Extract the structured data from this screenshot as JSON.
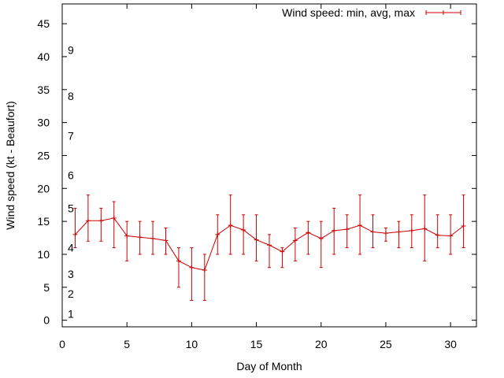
{
  "chart_data": {
    "type": "line",
    "title": "",
    "xlabel": "Day of Month",
    "ylabel": "Wind speed (kt - Beaufort)",
    "xlim": [
      0,
      32
    ],
    "ylim": [
      -1,
      48
    ],
    "xticks": [
      0,
      5,
      10,
      15,
      20,
      25,
      30
    ],
    "yticks": [
      0,
      5,
      10,
      15,
      20,
      25,
      30,
      35,
      40,
      45
    ],
    "grid": false,
    "legend": {
      "position": "top-right"
    },
    "beaufort_labels": [
      {
        "label": "1",
        "y": 1
      },
      {
        "label": "2",
        "y": 4
      },
      {
        "label": "3",
        "y": 7
      },
      {
        "label": "4",
        "y": 11
      },
      {
        "label": "5",
        "y": 17
      },
      {
        "label": "6",
        "y": 22
      },
      {
        "label": "7",
        "y": 28
      },
      {
        "label": "8",
        "y": 34
      },
      {
        "label": "9",
        "y": 41
      }
    ],
    "series": [
      {
        "name": "Wind speed: min, avg, max",
        "color": "#cc0000",
        "x": [
          1,
          2,
          3,
          4,
          5,
          6,
          7,
          8,
          9,
          10,
          11,
          12,
          13,
          14,
          15,
          16,
          17,
          18,
          19,
          20,
          21,
          22,
          23,
          24,
          25,
          26,
          27,
          28,
          29,
          30,
          31
        ],
        "avg": [
          13,
          15.1,
          15.1,
          15.5,
          12.8,
          12.6,
          12.4,
          12.1,
          9,
          8,
          7.6,
          13,
          14.4,
          13.7,
          12.2,
          11.4,
          10.4,
          12.1,
          13.3,
          12.4,
          13.6,
          13.8,
          14.4,
          13.4,
          13.2,
          13.4,
          13.6,
          13.9,
          12.9,
          12.8,
          14.3
        ],
        "min": [
          11,
          12,
          12,
          11,
          9,
          10,
          10,
          10,
          5,
          3,
          3,
          10,
          10,
          10,
          9,
          8,
          8,
          9,
          10,
          8,
          10,
          11,
          10,
          11,
          12,
          11,
          11,
          9,
          11,
          10,
          11
        ],
        "max": [
          17,
          19,
          17,
          18,
          15,
          15,
          15,
          14,
          11,
          11,
          10,
          16,
          19,
          16,
          16,
          13,
          11,
          14,
          15,
          15,
          17,
          16,
          19,
          16,
          14,
          15,
          16,
          19,
          16,
          16,
          19
        ]
      }
    ]
  }
}
